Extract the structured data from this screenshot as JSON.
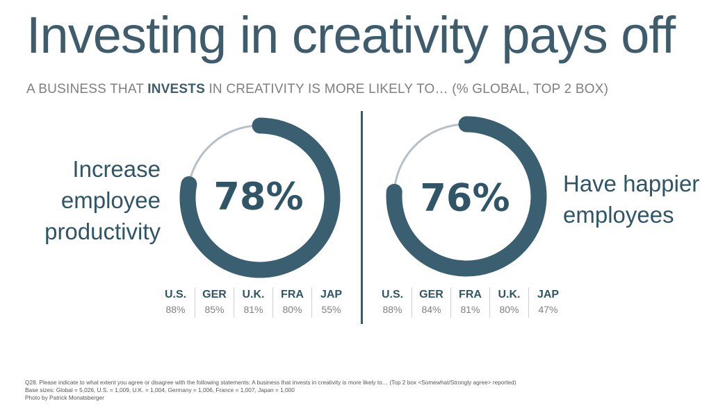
{
  "title": "Investing in creativity pays off",
  "subtitle": {
    "prefix": "A BUSINESS THAT ",
    "emphasis": "INVESTS",
    "suffix": " IN CREATIVITY IS MORE LIKELY TO… (% GLOBAL, TOP 2 BOX)"
  },
  "colors": {
    "accent": "#3a5f71",
    "track": "#b7c0c8",
    "muted_text": "#7f7f7f"
  },
  "chart_data": [
    {
      "type": "pie",
      "label_lines": [
        "Increase",
        "employee",
        "productivity"
      ],
      "value": 78,
      "value_label": "78%",
      "countries": [
        {
          "name": "U.S.",
          "label": "88%",
          "value": 88
        },
        {
          "name": "GER",
          "label": "85%",
          "value": 85
        },
        {
          "name": "U.K.",
          "label": "81%",
          "value": 81
        },
        {
          "name": "FRA",
          "label": "80%",
          "value": 80
        },
        {
          "name": "JAP",
          "label": "55%",
          "value": 55
        }
      ]
    },
    {
      "type": "pie",
      "label_lines": [
        "Have happier",
        "employees"
      ],
      "value": 76,
      "value_label": "76%",
      "countries": [
        {
          "name": "U.S.",
          "label": "88%",
          "value": 88
        },
        {
          "name": "GER",
          "label": "84%",
          "value": 84
        },
        {
          "name": "FRA",
          "label": "81%",
          "value": 81
        },
        {
          "name": "U.K.",
          "label": "80%",
          "value": 80
        },
        {
          "name": "JAP",
          "label": "47%",
          "value": 47
        }
      ]
    }
  ],
  "footnote": {
    "line1": "Q28. Please indicate to what extent you agree or disagree with the following statements: A business that invests in creativity is more likely to… (Top 2 box <Somewhat/Strongly agree> reported)",
    "line2": "Base sizes: Global = 5,026, U.S. = 1,009, U.K. = 1,004, Germany = 1,006, France = 1,007, Japan = 1,000",
    "line3": "Photo by Patrick Monatsberger"
  }
}
